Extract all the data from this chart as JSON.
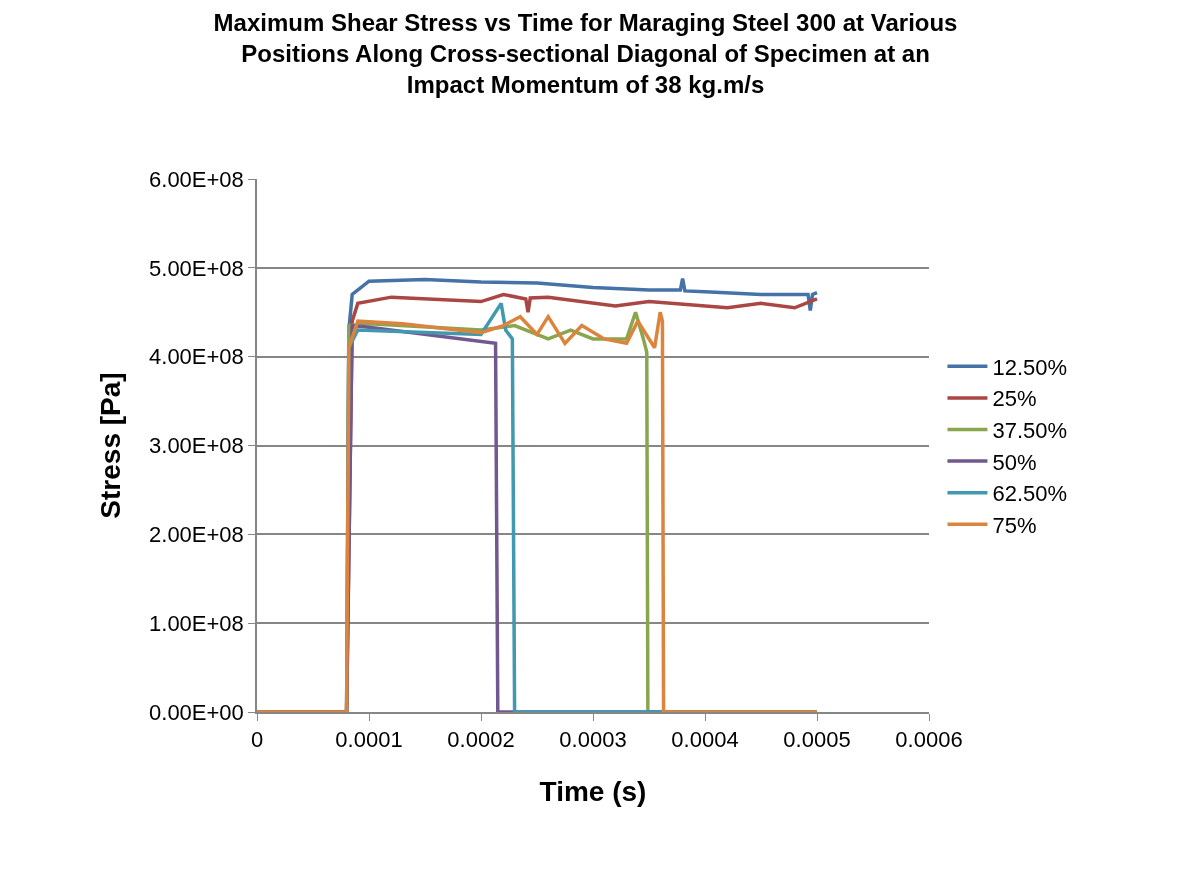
{
  "chart_data": {
    "type": "line",
    "title": "Maximum Shear Stress vs Time for Maraging Steel 300 at Various Positions Along Cross-sectional Diagonal of Specimen at an Impact Momentum of 38 kg.m/s",
    "xlabel": "Time (s)",
    "ylabel": "Stress [Pa]",
    "xlim": [
      0,
      0.0006
    ],
    "xticks": [
      0,
      0.0001,
      0.0002,
      0.0003,
      0.0004,
      0.0005,
      0.0006
    ],
    "ylim": [
      0,
      600000000
    ],
    "yticks": [
      {
        "value": 0,
        "label": "0.00E+00"
      },
      {
        "value": 100000000,
        "label": "1.00E+08"
      },
      {
        "value": 200000000,
        "label": "2.00E+08"
      },
      {
        "value": 300000000,
        "label": "3.00E+08"
      },
      {
        "value": 400000000,
        "label": "4.00E+08"
      },
      {
        "value": 500000000,
        "label": "5.00E+08"
      },
      {
        "value": 600000000,
        "label": "6.00E+08"
      }
    ],
    "grid": "y",
    "legend": "right",
    "marker": "none",
    "line_style": "solid",
    "series": [
      {
        "name": "12.50%",
        "color": "#4572a7",
        "x": [
          0,
          8e-05,
          8.2e-05,
          8.5e-05,
          0.0001,
          0.00015,
          0.0002,
          0.00025,
          0.0003,
          0.00035,
          0.000378,
          0.00038,
          0.000382,
          0.0004,
          0.00045,
          0.000492,
          0.000494,
          0.000496,
          0.0005
        ],
        "values": [
          0,
          0,
          430000000,
          470000000,
          485000000,
          487000000,
          484000000,
          483000000,
          478000000,
          475000000,
          475000000,
          488000000,
          474000000,
          473000000,
          470000000,
          470000000,
          452000000,
          470000000,
          472000000
        ]
      },
      {
        "name": "25%",
        "color": "#aa4643",
        "x": [
          0,
          8e-05,
          8.5e-05,
          9e-05,
          0.00012,
          0.0002,
          0.00022,
          0.00024,
          0.000242,
          0.000244,
          0.00026,
          0.00032,
          0.00035,
          0.00042,
          0.00045,
          0.00048,
          0.0005
        ],
        "values": [
          0,
          0,
          440000000,
          460000000,
          467000000,
          462000000,
          470000000,
          465000000,
          450000000,
          466000000,
          467000000,
          457000000,
          462000000,
          455000000,
          460000000,
          455000000,
          465000000
        ]
      },
      {
        "name": "37.50%",
        "color": "#89a54e",
        "x": [
          0,
          8e-05,
          8.2e-05,
          0.0001,
          0.0002,
          0.00023,
          0.00026,
          0.00028,
          0.0003,
          0.00033,
          0.000338,
          0.000345,
          0.000348,
          0.000349,
          0.0005
        ],
        "values": [
          0,
          0,
          435000000,
          437000000,
          430000000,
          435000000,
          420000000,
          430000000,
          420000000,
          420000000,
          450000000,
          420000000,
          405000000,
          0,
          0
        ]
      },
      {
        "name": "50%",
        "color": "#71588f",
        "x": [
          0,
          8e-05,
          8.5e-05,
          0.0001,
          0.000213,
          0.000215,
          0.0005
        ],
        "values": [
          0,
          0,
          435000000,
          433000000,
          415000000,
          0,
          0
        ]
      },
      {
        "name": "62.50%",
        "color": "#4198af",
        "x": [
          null,
          null,
          8.1e-05,
          8.2e-05,
          9e-05,
          0.0002,
          0.000218,
          0.000222,
          0.000228,
          0.00023,
          0.0005
        ],
        "values": [
          null,
          null,
          240000000,
          410000000,
          430000000,
          425000000,
          460000000,
          430000000,
          420000000,
          0,
          0
        ]
      },
      {
        "name": "75%",
        "color": "#db843d",
        "x": [
          0,
          8e-05,
          8.2e-05,
          9e-05,
          0.00013,
          0.0002,
          0.00022,
          0.000235,
          0.00025,
          0.00026,
          0.000275,
          0.00029,
          0.00031,
          0.00033,
          0.00034,
          0.000355,
          0.00036,
          0.000362,
          0.000363,
          0.0005
        ],
        "values": [
          0,
          0,
          410000000,
          440000000,
          437000000,
          427000000,
          435000000,
          445000000,
          425000000,
          445000000,
          415000000,
          435000000,
          420000000,
          415000000,
          440000000,
          410000000,
          450000000,
          440000000,
          0,
          0
        ]
      }
    ]
  }
}
